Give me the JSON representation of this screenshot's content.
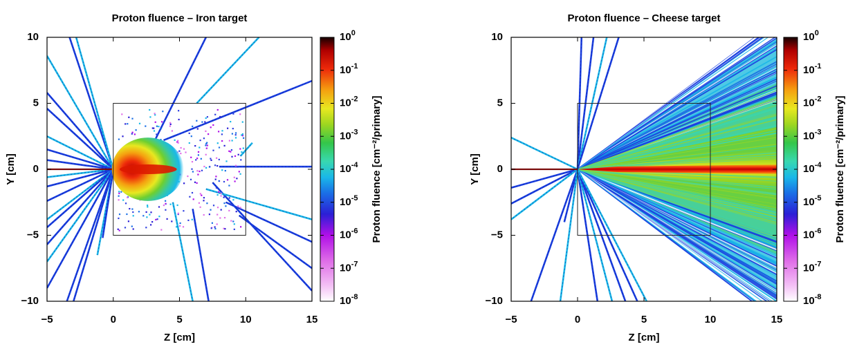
{
  "chart_data": [
    {
      "type": "heatmap",
      "title": "Proton fluence – Iron target",
      "xlabel": "Z [cm]",
      "ylabel": "Y [cm]",
      "xlim": [
        -5,
        15
      ],
      "ylim": [
        -10,
        10
      ],
      "x_ticks": [
        "−5",
        "0",
        "5",
        "10",
        "15"
      ],
      "y_ticks": [
        "−10",
        "−5",
        "0",
        "5",
        "10"
      ],
      "target_box": {
        "z": [
          0,
          10
        ],
        "y": [
          -5,
          5
        ]
      },
      "colorbar": {
        "label": "Proton fluence [cm⁻²/primary]",
        "scale": "log",
        "range": [
          1e-08,
          1
        ],
        "ticks": [
          {
            "base": "10",
            "exp": "0"
          },
          {
            "base": "10",
            "exp": "-1"
          },
          {
            "base": "10",
            "exp": "-2"
          },
          {
            "base": "10",
            "exp": "-3"
          },
          {
            "base": "10",
            "exp": "-4"
          },
          {
            "base": "10",
            "exp": "-5"
          },
          {
            "base": "10",
            "exp": "-6"
          },
          {
            "base": "10",
            "exp": "-7"
          },
          {
            "base": "10",
            "exp": "-8"
          }
        ]
      },
      "beam": {
        "core_end_z": 4.8,
        "core_halfwidth_y": 2.4
      },
      "tracks": [
        [
          0,
          0,
          -5,
          8.6
        ],
        [
          0,
          0,
          -5,
          5.8
        ],
        [
          0,
          0,
          -5,
          4.6
        ],
        [
          0,
          0,
          -5,
          2.5
        ],
        [
          0,
          0,
          -5,
          1.5
        ],
        [
          0,
          0,
          -5,
          0.7
        ],
        [
          0,
          0,
          -5,
          -0.6
        ],
        [
          0,
          0,
          -5,
          -1.3
        ],
        [
          0,
          0,
          -5,
          -2.4
        ],
        [
          0,
          0,
          -5,
          -3.8
        ],
        [
          0,
          0,
          -5,
          -4.4
        ],
        [
          0,
          0,
          -5,
          -5.7
        ],
        [
          0,
          0,
          -5,
          -7.0
        ],
        [
          0,
          0,
          -5,
          -9.0
        ],
        [
          0,
          0,
          -3.3,
          10
        ],
        [
          0,
          0,
          -2.8,
          10
        ],
        [
          0,
          0,
          -3.5,
          -10
        ],
        [
          0,
          0,
          -3.0,
          -10
        ],
        [
          0,
          0,
          -1.2,
          -6.5
        ],
        [
          0,
          0,
          -0.8,
          -5.2
        ],
        [
          2.8,
          1.5,
          7.0,
          10
        ],
        [
          6.3,
          5.0,
          11.0,
          10
        ],
        [
          3.8,
          2.2,
          15,
          6.7
        ],
        [
          7.5,
          -1.0,
          15,
          -9.2
        ],
        [
          7.0,
          -1.5,
          15,
          -3.8
        ],
        [
          8.0,
          0.2,
          15,
          0.2
        ],
        [
          8.5,
          -2.5,
          15,
          -5.5
        ],
        [
          4.5,
          -2.5,
          6.0,
          -10
        ],
        [
          6.0,
          -3.0,
          7.2,
          -10
        ],
        [
          9.5,
          -3.5,
          15,
          -7.5
        ],
        [
          9.6,
          1.0,
          10.5,
          2.0
        ]
      ],
      "scatter_points": 320,
      "scatter_region": {
        "z": [
          0.3,
          9.8
        ],
        "y": [
          -4.7,
          4.5
        ]
      }
    },
    {
      "type": "heatmap",
      "title": "Proton fluence – Cheese target",
      "xlabel": "Z [cm]",
      "ylabel": "Y [cm]",
      "xlim": [
        -5,
        15
      ],
      "ylim": [
        -10,
        10
      ],
      "x_ticks": [
        "−5",
        "0",
        "5",
        "10",
        "15"
      ],
      "y_ticks": [
        "−10",
        "−5",
        "0",
        "5",
        "10"
      ],
      "target_box": {
        "z": [
          0,
          10
        ],
        "y": [
          -5,
          5
        ]
      },
      "colorbar": {
        "label": "Proton fluence [cm⁻²/primary]",
        "scale": "log",
        "range": [
          1e-08,
          1
        ],
        "ticks": [
          {
            "base": "10",
            "exp": "0"
          },
          {
            "base": "10",
            "exp": "-1"
          },
          {
            "base": "10",
            "exp": "-2"
          },
          {
            "base": "10",
            "exp": "-3"
          },
          {
            "base": "10",
            "exp": "-4"
          },
          {
            "base": "10",
            "exp": "-5"
          },
          {
            "base": "10",
            "exp": "-6"
          },
          {
            "base": "10",
            "exp": "-7"
          },
          {
            "base": "10",
            "exp": "-8"
          }
        ]
      },
      "beam": {
        "core_end_z": 15,
        "core_halfwidth_y": 0.35
      },
      "fan": {
        "apex": [
          0,
          0
        ],
        "upper_edge_y_at_15": 10,
        "lower_edge_y_at_15": -10
      },
      "tracks": [
        [
          0,
          0,
          -5,
          2.4
        ],
        [
          0,
          0,
          -5,
          -1.4
        ],
        [
          0,
          0,
          -5,
          -2.6
        ],
        [
          0,
          0,
          -5,
          -3.8
        ],
        [
          0,
          0,
          -3.5,
          -10
        ],
        [
          0,
          0,
          -1.0,
          -4.0
        ],
        [
          0,
          0,
          -1.3,
          -10
        ],
        [
          0,
          0,
          0.3,
          10
        ],
        [
          0,
          0,
          1.2,
          10
        ],
        [
          0,
          0,
          2.2,
          10
        ],
        [
          0,
          0,
          3.1,
          10
        ],
        [
          0,
          0,
          1.5,
          -10
        ],
        [
          0,
          0,
          2.6,
          -10
        ],
        [
          0,
          0,
          3.6,
          -10
        ],
        [
          0,
          0,
          4.5,
          -10
        ],
        [
          0,
          0,
          5.2,
          -10
        ]
      ],
      "scatter_points": 0
    }
  ]
}
